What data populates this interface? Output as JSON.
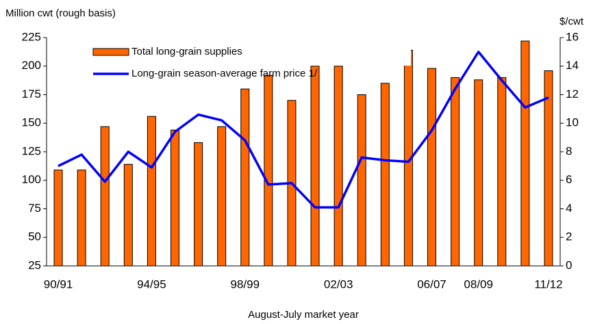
{
  "chart_data": {
    "type": "bar-line",
    "y_label": "Million cwt (rough basis)",
    "y2_label": "$/cwt",
    "x_label": "August-July market year",
    "categories": [
      "90/91",
      null,
      null,
      null,
      "94/95",
      null,
      null,
      null,
      "98/99",
      null,
      null,
      null,
      "02/03",
      null,
      null,
      null,
      "06/07",
      null,
      "08/09",
      null,
      null,
      "11/12"
    ],
    "series": [
      {
        "name": "Total long-grain supplies",
        "type": "bar",
        "color": "#ff6600",
        "values": [
          109,
          109,
          147,
          114,
          156,
          144,
          133,
          147,
          180,
          192,
          170,
          200,
          200,
          175,
          185,
          214,
          198,
          190,
          188,
          190,
          222,
          196
        ]
      },
      {
        "name": "Long-grain season-average farm price 1/",
        "type": "line",
        "color": "#0000ff",
        "axis": "y2",
        "values": [
          7.0,
          7.8,
          5.9,
          8.0,
          6.9,
          9.4,
          10.6,
          10.2,
          8.8,
          5.7,
          5.8,
          4.1,
          4.1,
          7.6,
          7.4,
          7.3,
          9.5,
          12.4,
          15.0,
          13.0,
          11.1,
          11.8
        ]
      }
    ],
    "ylim": [
      25,
      225
    ],
    "yticks": [
      25,
      50,
      75,
      100,
      125,
      150,
      175,
      200,
      225
    ],
    "y2lim": [
      0,
      16
    ],
    "y2ticks": [
      0,
      2,
      4,
      6,
      8,
      10,
      12,
      14,
      16
    ],
    "grid": false
  }
}
